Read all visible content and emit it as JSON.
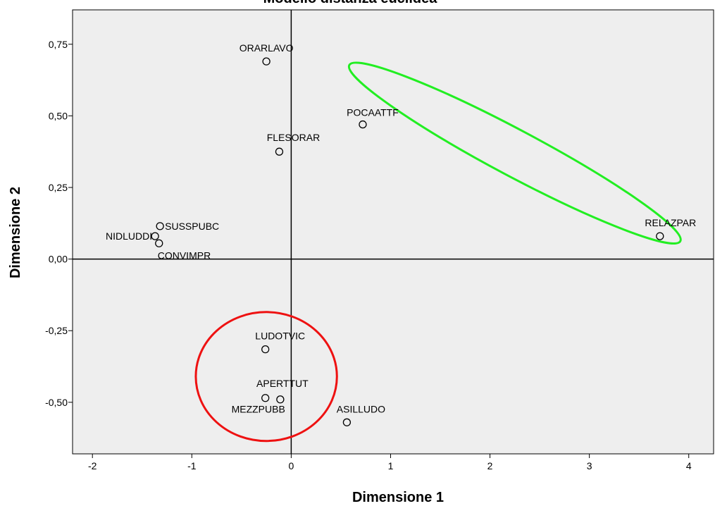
{
  "chart_data": {
    "type": "scatter",
    "title": "Modello distanza euclidea",
    "xlabel": "Dimensione 1",
    "ylabel": "Dimensione 2",
    "xlim": [
      -2.2,
      4.25
    ],
    "ylim": [
      -0.68,
      0.87
    ],
    "x_ticks": [
      -2,
      -1,
      0,
      1,
      2,
      3,
      4
    ],
    "x_tick_labels": [
      "-2",
      "-1",
      "0",
      "1",
      "2",
      "3",
      "4"
    ],
    "y_ticks": [
      -0.5,
      -0.25,
      0,
      0.25,
      0.5,
      0.75
    ],
    "y_tick_labels": [
      "-0,50",
      "-0,25",
      "0,00",
      "0,25",
      "0,50",
      "0,75"
    ],
    "grid": false,
    "reference_lines": {
      "x": 0,
      "y": 0
    },
    "points": [
      {
        "label": "ORARLAVO",
        "x": -0.25,
        "y": 0.69
      },
      {
        "label": "POCAATTF",
        "x": 0.72,
        "y": 0.47
      },
      {
        "label": "FLESORAR",
        "x": -0.12,
        "y": 0.375
      },
      {
        "label": "SUSSPUBC",
        "x": -1.32,
        "y": 0.115
      },
      {
        "label": "NIDLUDDI",
        "x": -1.37,
        "y": 0.08
      },
      {
        "label": "CONVIMPR",
        "x": -1.33,
        "y": 0.055
      },
      {
        "label": "RELAZPAR",
        "x": 3.71,
        "y": 0.08
      },
      {
        "label": "LUDOTVIC",
        "x": -0.26,
        "y": -0.315
      },
      {
        "label": "APERTTUT",
        "x": -0.11,
        "y": -0.49
      },
      {
        "label": "MEZZPUBB",
        "x": -0.26,
        "y": -0.485
      },
      {
        "label": "ASILLUDO",
        "x": 0.56,
        "y": -0.57
      }
    ],
    "highlights": [
      {
        "shape": "ellipse",
        "color": "#22ee22",
        "cx": 2.25,
        "cy": 0.37,
        "rx": 2.05,
        "ry": 0.13,
        "angle_deg": 28
      },
      {
        "shape": "ellipse",
        "color": "#ee1111",
        "cx": -0.25,
        "cy": -0.41,
        "rx": 0.71,
        "ry": 0.225,
        "angle_deg": 0
      }
    ]
  },
  "colors": {
    "plot_background": "#eeeeee",
    "axis": "#000000"
  }
}
